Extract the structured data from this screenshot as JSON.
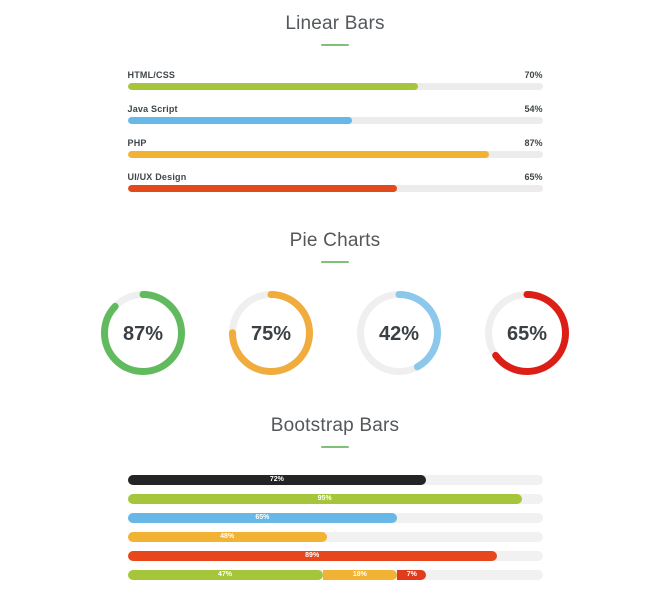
{
  "linear": {
    "title": "Linear Bars",
    "bars": [
      {
        "label": "HTML/CSS",
        "value": "70%",
        "pct": 70,
        "color": "#a5c63b"
      },
      {
        "label": "Java Script",
        "value": "54%",
        "pct": 54,
        "color": "#67b7e7"
      },
      {
        "label": "PHP",
        "value": "87%",
        "pct": 87,
        "color": "#f2b234"
      },
      {
        "label": "UI/UX Design",
        "value": "65%",
        "pct": 65,
        "color": "#e24a1b"
      }
    ]
  },
  "pies": {
    "title": "Pie Charts",
    "items": [
      {
        "value": "87%",
        "pct": 87,
        "color": "#62ba5e"
      },
      {
        "value": "75%",
        "pct": 75,
        "color": "#f0ad3e"
      },
      {
        "value": "42%",
        "pct": 42,
        "color": "#8cc8ec"
      },
      {
        "value": "65%",
        "pct": 65,
        "color": "#dc1e17"
      }
    ]
  },
  "bootstrap": {
    "title": "Bootstrap Bars",
    "bars": [
      {
        "segments": [
          {
            "value": "72%",
            "pct": 72,
            "color": "#242424"
          }
        ]
      },
      {
        "segments": [
          {
            "value": "95%",
            "pct": 95,
            "color": "#a5c63b"
          }
        ]
      },
      {
        "segments": [
          {
            "value": "65%",
            "pct": 65,
            "color": "#67b7e7"
          }
        ]
      },
      {
        "segments": [
          {
            "value": "48%",
            "pct": 48,
            "color": "#f2b234"
          }
        ]
      },
      {
        "segments": [
          {
            "value": "89%",
            "pct": 89,
            "color": "#e8471d"
          }
        ]
      },
      {
        "segments": [
          {
            "value": "47%",
            "pct": 47,
            "color": "#a5c63b"
          },
          {
            "value": "18%",
            "pct": 18,
            "color": "#f2b234"
          },
          {
            "value": "7%",
            "pct": 7,
            "color": "#e23a1c"
          }
        ]
      }
    ]
  },
  "accent_divider_color": "#7fc17b",
  "chart_data": [
    {
      "type": "bar",
      "title": "Linear Bars",
      "categories": [
        "HTML/CSS",
        "Java Script",
        "PHP",
        "UI/UX Design"
      ],
      "values": [
        70,
        54,
        87,
        65
      ],
      "xlabel": "",
      "ylabel": "",
      "xlim": [
        0,
        100
      ],
      "orientation": "horizontal",
      "grid": false,
      "data_labels": [
        "70%",
        "54%",
        "87%",
        "65%"
      ],
      "colors": [
        "#a5c63b",
        "#67b7e7",
        "#f2b234",
        "#e24a1b"
      ]
    },
    {
      "type": "pie",
      "title": "Pie Charts",
      "subtype": "donut-gauges",
      "values": [
        87,
        75,
        42,
        65
      ],
      "labels": [
        "87%",
        "75%",
        "42%",
        "65%"
      ],
      "colors": [
        "#62ba5e",
        "#f0ad3e",
        "#8cc8ec",
        "#dc1e17"
      ],
      "track_color": "#efefef"
    },
    {
      "type": "bar",
      "title": "Bootstrap Bars",
      "orientation": "horizontal",
      "xlim": [
        0,
        100
      ],
      "series": [
        {
          "name": "bar-1",
          "segments": [
            72
          ]
        },
        {
          "name": "bar-2",
          "segments": [
            95
          ]
        },
        {
          "name": "bar-3",
          "segments": [
            65
          ]
        },
        {
          "name": "bar-4",
          "segments": [
            48
          ]
        },
        {
          "name": "bar-5",
          "segments": [
            89
          ]
        },
        {
          "name": "bar-6-stacked",
          "segments": [
            47,
            18,
            7
          ]
        }
      ],
      "data_labels": [
        [
          "72%"
        ],
        [
          "95%"
        ],
        [
          "65%"
        ],
        [
          "48%"
        ],
        [
          "89%"
        ],
        [
          "47%",
          "18%",
          "7%"
        ]
      ],
      "colors": [
        [
          "#242424"
        ],
        [
          "#a5c63b"
        ],
        [
          "#67b7e7"
        ],
        [
          "#f2b234"
        ],
        [
          "#e8471d"
        ],
        [
          "#a5c63b",
          "#f2b234",
          "#e23a1c"
        ]
      ]
    }
  ]
}
